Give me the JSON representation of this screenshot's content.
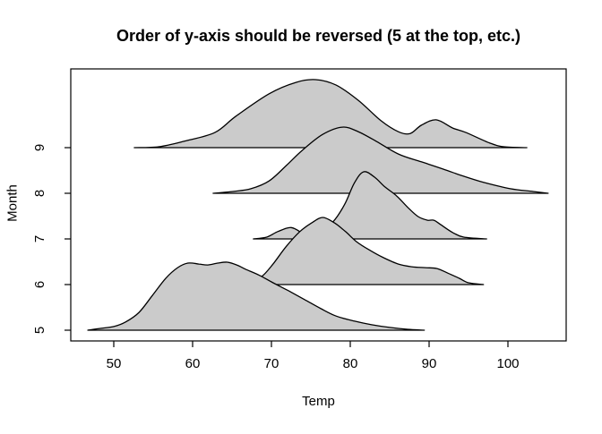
{
  "figure": {
    "title": "Order of y-axis should be reversed (5 at the top, etc.)",
    "xlabel": "Temp",
    "ylabel": "Month"
  },
  "chart_data": {
    "type": "ridgeline",
    "title": "Order of y-axis should be reversed (5 at the top, etc.)",
    "xlabel": "Temp",
    "ylabel": "Month",
    "x_ticks": [
      50,
      60,
      70,
      80,
      90,
      100
    ],
    "y_ticks": [
      9,
      8,
      7,
      6,
      5
    ],
    "x_range": [
      44.5,
      107.4
    ],
    "y_axis_note": "Months listed top-to-bottom as 9,8,7,6,5; baselines evenly spaced; grid off; no legend",
    "height_units_note": "h is density height in row units (1.0 = vertical gap between adjacent month baselines)",
    "fill_color": "#cbcbcb",
    "line_color": "#000000",
    "series": [
      {
        "name": "Month 9",
        "month": 9,
        "points": [
          [
            52.6,
            0
          ],
          [
            55.7,
            0.02
          ],
          [
            58.9,
            0.14
          ],
          [
            62.8,
            0.33
          ],
          [
            65.5,
            0.69
          ],
          [
            69.7,
            1.18
          ],
          [
            73.1,
            1.43
          ],
          [
            75.6,
            1.49
          ],
          [
            78.2,
            1.37
          ],
          [
            81.0,
            1.04
          ],
          [
            83.9,
            0.59
          ],
          [
            86.1,
            0.35
          ],
          [
            87.6,
            0.31
          ],
          [
            89.0,
            0.49
          ],
          [
            90.9,
            0.61
          ],
          [
            93.0,
            0.43
          ],
          [
            94.7,
            0.33
          ],
          [
            97.7,
            0.1
          ],
          [
            99.5,
            0.02
          ],
          [
            102.4,
            0
          ]
        ]
      },
      {
        "name": "Month 8",
        "month": 8,
        "points": [
          [
            62.6,
            0
          ],
          [
            65.1,
            0.04
          ],
          [
            67.4,
            0.1
          ],
          [
            69.7,
            0.27
          ],
          [
            71.9,
            0.61
          ],
          [
            73.9,
            0.94
          ],
          [
            76.5,
            1.29
          ],
          [
            79.0,
            1.45
          ],
          [
            81.0,
            1.35
          ],
          [
            83.3,
            1.14
          ],
          [
            86.1,
            0.86
          ],
          [
            89.0,
            0.69
          ],
          [
            91.8,
            0.53
          ],
          [
            94.1,
            0.39
          ],
          [
            96.9,
            0.24
          ],
          [
            100.3,
            0.1
          ],
          [
            103.2,
            0.04
          ],
          [
            105.1,
            0
          ]
        ]
      },
      {
        "name": "Month 7",
        "month": 7,
        "points": [
          [
            67.7,
            0
          ],
          [
            69.4,
            0.04
          ],
          [
            70.8,
            0.16
          ],
          [
            72.5,
            0.25
          ],
          [
            74.0,
            0.12
          ],
          [
            74.8,
            0.08
          ],
          [
            76.3,
            0.18
          ],
          [
            77.8,
            0.37
          ],
          [
            79.3,
            0.76
          ],
          [
            80.5,
            1.22
          ],
          [
            81.7,
            1.47
          ],
          [
            83.1,
            1.35
          ],
          [
            84.4,
            1.14
          ],
          [
            85.9,
            0.94
          ],
          [
            87.3,
            0.69
          ],
          [
            88.6,
            0.49
          ],
          [
            89.8,
            0.41
          ],
          [
            90.6,
            0.41
          ],
          [
            91.5,
            0.31
          ],
          [
            93.0,
            0.14
          ],
          [
            94.4,
            0.04
          ],
          [
            97.3,
            0
          ]
        ]
      },
      {
        "name": "Month 6",
        "month": 6,
        "points": [
          [
            66.0,
            0
          ],
          [
            67.4,
            0.08
          ],
          [
            68.8,
            0.18
          ],
          [
            70.2,
            0.45
          ],
          [
            71.9,
            0.84
          ],
          [
            73.6,
            1.16
          ],
          [
            75.1,
            1.35
          ],
          [
            76.5,
            1.47
          ],
          [
            78.0,
            1.35
          ],
          [
            79.4,
            1.16
          ],
          [
            80.8,
            0.94
          ],
          [
            82.4,
            0.76
          ],
          [
            84.2,
            0.59
          ],
          [
            86.1,
            0.45
          ],
          [
            87.8,
            0.39
          ],
          [
            89.5,
            0.37
          ],
          [
            91.0,
            0.35
          ],
          [
            92.4,
            0.25
          ],
          [
            93.8,
            0.14
          ],
          [
            95.0,
            0.04
          ],
          [
            96.9,
            0
          ]
        ]
      },
      {
        "name": "Month 5",
        "month": 5,
        "points": [
          [
            46.7,
            0
          ],
          [
            48.3,
            0.04
          ],
          [
            50.0,
            0.08
          ],
          [
            51.5,
            0.18
          ],
          [
            53.2,
            0.39
          ],
          [
            54.9,
            0.76
          ],
          [
            56.6,
            1.14
          ],
          [
            58.1,
            1.37
          ],
          [
            59.4,
            1.47
          ],
          [
            60.8,
            1.45
          ],
          [
            61.9,
            1.43
          ],
          [
            63.2,
            1.47
          ],
          [
            64.4,
            1.49
          ],
          [
            65.6,
            1.43
          ],
          [
            66.8,
            1.33
          ],
          [
            68.5,
            1.2
          ],
          [
            70.2,
            1.04
          ],
          [
            72.2,
            0.86
          ],
          [
            74.2,
            0.67
          ],
          [
            76.3,
            0.47
          ],
          [
            78.2,
            0.31
          ],
          [
            80.5,
            0.2
          ],
          [
            82.7,
            0.12
          ],
          [
            85.0,
            0.06
          ],
          [
            87.3,
            0.02
          ],
          [
            89.4,
            0
          ]
        ]
      }
    ]
  }
}
